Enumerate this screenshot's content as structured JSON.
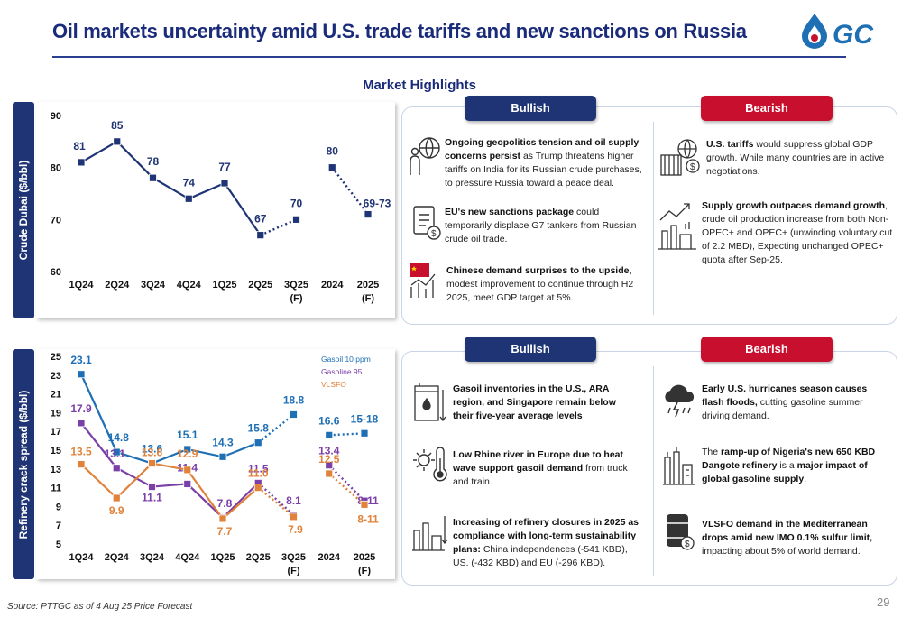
{
  "header": {
    "title": "Oil markets uncertainty amid U.S. trade tariffs and new sanctions on Russia",
    "logo_text": "GC",
    "section_title": "Market Highlights"
  },
  "colors": {
    "navy": "#1f3474",
    "red": "#c8102e",
    "blue": "#1f6fb5",
    "purple": "#7b3fa8",
    "orange": "#e0823a",
    "gray": "#c9cfd8"
  },
  "chart_data": [
    {
      "type": "line",
      "ylabel": "Crude Dubai ($/bbl)",
      "categories": [
        "1Q24",
        "2Q24",
        "3Q24",
        "4Q24",
        "1Q25",
        "2Q25",
        "3Q25\n(F)",
        "2024",
        "2025\n(F)"
      ],
      "ylim": [
        60,
        90
      ],
      "yticks": [
        60,
        70,
        80,
        90
      ],
      "series": [
        {
          "values": [
            81,
            85,
            78,
            74,
            77,
            67,
            70,
            80,
            71
          ],
          "labels": [
            "81",
            "85",
            "78",
            "74",
            "77",
            "67",
            "70",
            "80",
            "69-73"
          ],
          "color": "#1f3474",
          "forecast_from_index": 5,
          "gap_after_index": 6
        }
      ]
    },
    {
      "type": "line",
      "ylabel": "Refinery crack spread ($/bbl)",
      "categories": [
        "1Q24",
        "2Q24",
        "3Q24",
        "4Q24",
        "1Q25",
        "2Q25",
        "3Q25\n(F)",
        "2024",
        "2025\n(F)"
      ],
      "ylim": [
        5,
        25
      ],
      "yticks": [
        5,
        7,
        9,
        11,
        13,
        15,
        17,
        19,
        21,
        23,
        25
      ],
      "legend_position": "top-right",
      "series": [
        {
          "name": "Gasoil 10 ppm",
          "color": "#1f6fb5",
          "values": [
            23.1,
            14.8,
            13.6,
            15.1,
            14.3,
            15.8,
            18.8,
            16.6,
            16.8
          ],
          "labels": [
            "23.1",
            "14.8",
            "13.6",
            "15.1",
            "14.3",
            "15.8",
            "18.8",
            "16.6",
            "15-18"
          ],
          "forecast_from_index": 5,
          "gap_after_index": 6
        },
        {
          "name": "Gasoline 95",
          "color": "#7b3fa8",
          "values": [
            17.9,
            13.1,
            11.1,
            11.4,
            7.8,
            11.5,
            8.1,
            13.4,
            9.6
          ],
          "labels": [
            "17.9",
            "13.1",
            "11.1",
            "11.4",
            "7.8",
            "11.5",
            "8.1",
            "13.4",
            "8-11"
          ],
          "forecast_from_index": 5,
          "gap_after_index": 6
        },
        {
          "name": "VLSFO",
          "color": "#e0823a",
          "values": [
            13.5,
            9.9,
            13.6,
            12.9,
            7.7,
            11.0,
            7.9,
            12.5,
            9.2
          ],
          "labels": [
            "13.5",
            "9.9",
            "13.6",
            "12.9",
            "7.7",
            "11.0",
            "7.9",
            "12.5",
            "8-11"
          ],
          "forecast_from_index": 5,
          "gap_after_index": 6
        }
      ]
    }
  ],
  "crude": {
    "bullish_label": "Bullish",
    "bearish_label": "Bearish",
    "bullish": [
      {
        "bold": "Ongoing geopolitics tension and oil supply concerns persist",
        "text": " as Trump threatens higher tariffs on India for its Russian crude purchases, to pressure Russia toward a peace deal."
      },
      {
        "bold": "EU's new sanctions package",
        "text": " could temporarily displace G7 tankers from Russian crude oil trade."
      },
      {
        "bold": "Chinese demand surprises to the upside,",
        "text": " modest improvement to continue through H2 2025, meet GDP target at 5%."
      }
    ],
    "bearish": [
      {
        "bold": "U.S. tariffs",
        "text": " would suppress global GDP growth. While many countries are in active negotiations."
      },
      {
        "bold": "Supply growth outpaces demand growth",
        "text": ", crude oil production increase from both Non-OPEC+ and OPEC+ (unwinding  voluntary cut of 2.2 MBD), Expecting unchanged OPEC+ quota after Sep-25."
      }
    ]
  },
  "refinery": {
    "bullish_label": "Bullish",
    "bearish_label": "Bearish",
    "bullish": [
      {
        "bold": "Gasoil inventories in the U.S., ARA region, and Singapore remain below their five-year average levels",
        "text": ""
      },
      {
        "bold": "Low Rhine river in Europe due to heat wave support gasoil demand",
        "text": " from truck and train."
      },
      {
        "bold": "Increasing of refinery closures in 2025 as compliance with long-term sustainability plans:",
        "text": " China independences (-541 KBD), US. (-432 KBD) and EU (-296 KBD)."
      }
    ],
    "bearish": [
      {
        "bold": "Early U.S. hurricanes season causes flash floods,",
        "text": " cutting gasoline summer driving demand."
      },
      {
        "pre": "The ",
        "bold": "ramp-up of Nigeria's new 650 KBD Dangote refinery",
        "mid": " is a ",
        "bold2": "major impact of global gasoline supply",
        "text": "."
      },
      {
        "bold": "VLSFO demand in the Mediterranean drops amid new IMO 0.1% sulfur limit,",
        "text": " impacting about 5% of world demand."
      }
    ]
  },
  "footer": {
    "source": "Source: PTTGC as of 4 Aug 25 Price Forecast",
    "page": "29"
  }
}
